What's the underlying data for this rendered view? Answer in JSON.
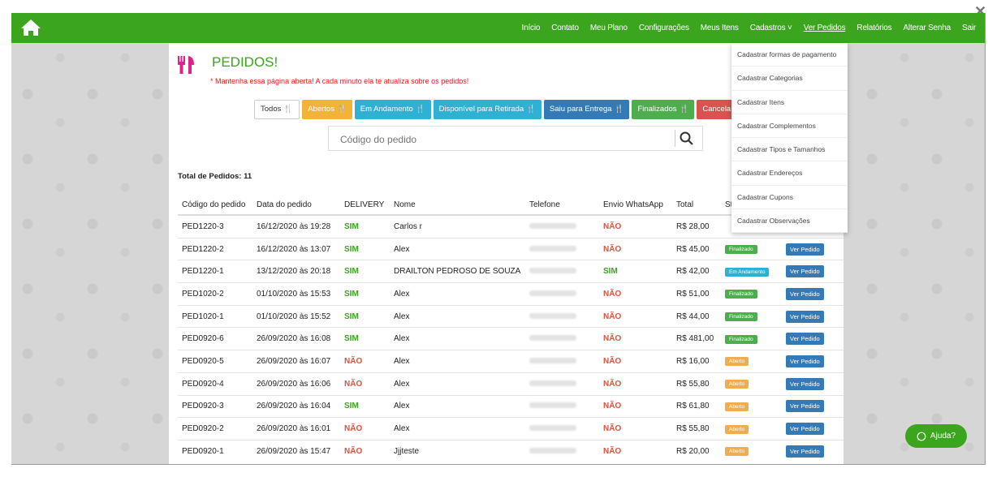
{
  "window": {
    "close_glyph": "✕"
  },
  "nav": {
    "home_icon": "home-icon",
    "items": [
      "Início",
      "Contato",
      "Meu Plano",
      "Configurações",
      "Meus Itens",
      "Cadastros ˅",
      "Ver Pedidos",
      "Relatórios",
      "Alterar Senha",
      "Sair"
    ]
  },
  "page": {
    "title": "PEDIDOS!",
    "subtitle": "* Mantenha essa página aberta! A cada minuto ela te atualiza sobre os pedidos!",
    "total_label": "Total de Pedidos: 11"
  },
  "filters": [
    "Todos",
    "Abertos",
    "Em Andamento",
    "Disponível para Retirada",
    "Saiu para Entrega",
    "Finalizados",
    "Cancela"
  ],
  "search": {
    "placeholder": "Código do pedido"
  },
  "table": {
    "headers": [
      "Código do pedido",
      "Data do pedido",
      "DELIVERY",
      "Nome",
      "Telefone",
      "Envio WhatsApp",
      "Total",
      "St"
    ],
    "rows": [
      {
        "code": "PED1220-3",
        "date": "16/12/2020 às 19:28",
        "delivery": "SIM",
        "name": "Carlos r",
        "whatsapp": "NÃO",
        "total": "R$ 28,00",
        "status": "",
        "action": ""
      },
      {
        "code": "PED1220-2",
        "date": "16/12/2020 às 13:07",
        "delivery": "SIM",
        "name": "Alex",
        "whatsapp": "NÃO",
        "total": "R$ 45,00",
        "status": "Finalizado",
        "action": "Ver Pedido"
      },
      {
        "code": "PED1220-1",
        "date": "13/12/2020 às 20:18",
        "delivery": "SIM",
        "name": "DRAILTON PEDROSO DE SOUZA",
        "whatsapp": "SIM",
        "total": "R$ 42,00",
        "status": "Em Andamento",
        "action": "Ver Pedido"
      },
      {
        "code": "PED1020-2",
        "date": "01/10/2020 às 15:53",
        "delivery": "SIM",
        "name": "Alex",
        "whatsapp": "NÃO",
        "total": "R$ 51,00",
        "status": "Finalizado",
        "action": "Ver Pedido"
      },
      {
        "code": "PED1020-1",
        "date": "01/10/2020 às 15:52",
        "delivery": "SIM",
        "name": "Alex",
        "whatsapp": "NÃO",
        "total": "R$ 44,00",
        "status": "Finalizado",
        "action": "Ver Pedido"
      },
      {
        "code": "PED0920-6",
        "date": "26/09/2020 às 16:08",
        "delivery": "SIM",
        "name": "Alex",
        "whatsapp": "NÃO",
        "total": "R$ 481,00",
        "status": "Finalizado",
        "action": "Ver Pedido"
      },
      {
        "code": "PED0920-5",
        "date": "26/09/2020 às 16:07",
        "delivery": "NÃO",
        "name": "Alex",
        "whatsapp": "NÃO",
        "total": "R$ 16,00",
        "status": "Aberto",
        "action": "Ver Pedido"
      },
      {
        "code": "PED0920-4",
        "date": "26/09/2020 às 16:06",
        "delivery": "NÃO",
        "name": "Alex",
        "whatsapp": "NÃO",
        "total": "R$ 55,80",
        "status": "Aberto",
        "action": "Ver Pedido"
      },
      {
        "code": "PED0920-3",
        "date": "26/09/2020 às 16:04",
        "delivery": "SIM",
        "name": "Alex",
        "whatsapp": "NÃO",
        "total": "R$ 61,80",
        "status": "Aberto",
        "action": "Ver Pedido"
      },
      {
        "code": "PED0920-2",
        "date": "26/09/2020 às 16:01",
        "delivery": "NÃO",
        "name": "Alex",
        "whatsapp": "NÃO",
        "total": "R$ 55,80",
        "status": "Aberto",
        "action": "Ver Pedido"
      },
      {
        "code": "PED0920-1",
        "date": "26/09/2020 às 15:47",
        "delivery": "NÃO",
        "name": "Jjjteste",
        "whatsapp": "NÃO",
        "total": "R$ 20,00",
        "status": "Aberto",
        "action": "Ver Pedido"
      }
    ]
  },
  "dropdown": {
    "items": [
      "Cadastrar formas de pagamento",
      "Cadastrar Categorias",
      "Cadastrar Itens",
      "Cadastrar Complementos",
      "Cadastrar Tipos e Tamanhos",
      "Cadastrar Endereços",
      "Cadastrar Cupons",
      "Cadastrar Observações"
    ]
  },
  "help": {
    "label": "Ajuda?"
  },
  "colors": {
    "brand": "#3aa51d",
    "danger": "#e01919",
    "primary": "#337ab7",
    "info": "#31b0d5",
    "warning": "#f0ad4e"
  }
}
